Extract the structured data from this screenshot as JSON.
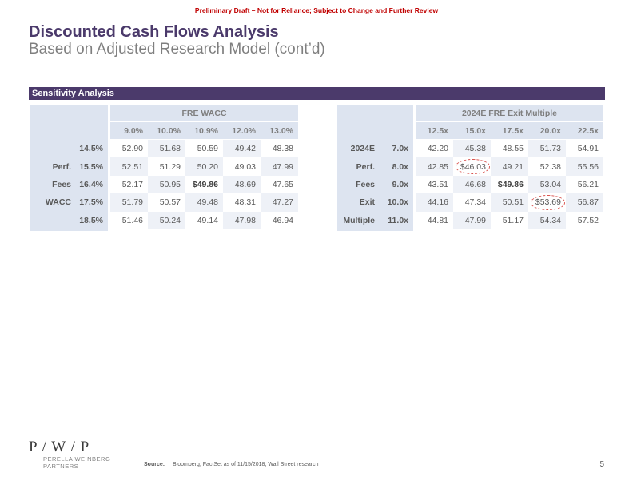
{
  "header": {
    "draft_notice": "Preliminary Draft – Not for Reliance; Subject to Change and Further Review",
    "title": "Discounted Cash Flows Analysis",
    "subtitle": "Based on Adjusted Research Model (cont’d)"
  },
  "section": {
    "title": "Sensitivity Analysis"
  },
  "left_table": {
    "title": "FRE WACC",
    "columns": [
      "9.0%",
      "10.0%",
      "10.9%",
      "12.0%",
      "13.0%"
    ],
    "row_group": [
      "Perf.",
      "Fees",
      "WACC"
    ],
    "rows": [
      {
        "key": "14.5%",
        "values": [
          "52.90",
          "51.68",
          "50.59",
          "49.42",
          "48.38"
        ]
      },
      {
        "key": "15.5%",
        "values": [
          "52.51",
          "51.29",
          "50.20",
          "49.03",
          "47.99"
        ]
      },
      {
        "key": "16.4%",
        "values": [
          "52.17",
          "50.95",
          "$49.86",
          "48.69",
          "47.65"
        ]
      },
      {
        "key": "17.5%",
        "values": [
          "51.79",
          "50.57",
          "49.48",
          "48.31",
          "47.27"
        ]
      },
      {
        "key": "18.5%",
        "values": [
          "51.46",
          "50.24",
          "49.14",
          "47.98",
          "46.94"
        ]
      }
    ]
  },
  "right_table": {
    "title": "2024E FRE Exit Multiple",
    "columns": [
      "12.5x",
      "15.0x",
      "17.5x",
      "20.0x",
      "22.5x"
    ],
    "row_group": [
      "2024E",
      "Perf.",
      "Fees",
      "Exit",
      "Multiple"
    ],
    "rows": [
      {
        "key": "7.0x",
        "values": [
          "42.20",
          "45.38",
          "48.55",
          "51.73",
          "54.91"
        ]
      },
      {
        "key": "8.0x",
        "values": [
          "42.85",
          "$46.03",
          "49.21",
          "52.38",
          "55.56"
        ]
      },
      {
        "key": "9.0x",
        "values": [
          "43.51",
          "46.68",
          "$49.86",
          "53.04",
          "56.21"
        ]
      },
      {
        "key": "10.0x",
        "values": [
          "44.16",
          "47.34",
          "50.51",
          "$53.69",
          "56.87"
        ]
      },
      {
        "key": "11.0x",
        "values": [
          "44.81",
          "47.99",
          "51.17",
          "54.34",
          "57.52"
        ]
      }
    ]
  },
  "footer": {
    "logo": "P / W / P",
    "firm": "PERELLA WEINBERG PARTNERS",
    "source_label": "Source:",
    "source": "Bloomberg,  FactSet as of 11/15/2018, Wall Street research",
    "page": "5"
  }
}
